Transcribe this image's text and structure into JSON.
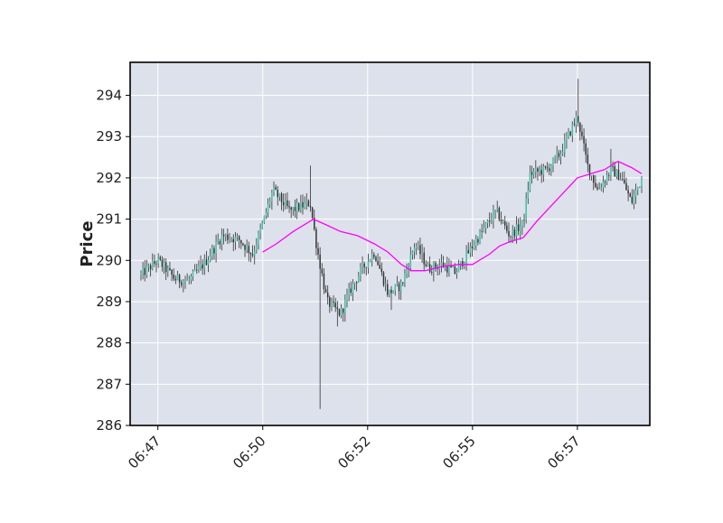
{
  "chart_data": {
    "type": "candlestick",
    "title": "",
    "xlabel": "",
    "ylabel": "Price",
    "ylim": [
      286,
      294.8
    ],
    "yticks": [
      286,
      287,
      288,
      289,
      290,
      291,
      292,
      293,
      294
    ],
    "ytick_labels": [
      "286",
      "287",
      "288",
      "289",
      "290",
      "291",
      "292",
      "293",
      "294"
    ],
    "xlim": [
      "06:46:44",
      "06:59:32"
    ],
    "xticks": [
      "06:47:25",
      "06:50:00",
      "06:52:35",
      "06:55:10",
      "06:57:45"
    ],
    "xtick_labels": [
      "06:47",
      "06:50",
      "06:52",
      "06:55",
      "06:57"
    ],
    "grid": true,
    "colors": {
      "background": "#dde1eb",
      "grid": "#ffffff",
      "frame": "#000000",
      "up": "#3ec0a8",
      "down": "#333333",
      "moving_average": "#ff00ff"
    },
    "price_path": {
      "time_range": [
        "06:47:00",
        "06:59:20"
      ],
      "control_points": [
        [
          "06:47:00",
          289.65
        ],
        [
          "06:47:25",
          290.0
        ],
        [
          "06:47:50",
          289.55
        ],
        [
          "06:48:10",
          289.5
        ],
        [
          "06:48:35",
          289.95
        ],
        [
          "06:49:00",
          290.6
        ],
        [
          "06:49:25",
          290.5
        ],
        [
          "06:49:45",
          290.15
        ],
        [
          "06:50:00",
          290.9
        ],
        [
          "06:50:15",
          291.7
        ],
        [
          "06:50:40",
          291.2
        ],
        [
          "06:51:10",
          291.4
        ],
        [
          "06:51:20",
          290.3
        ],
        [
          "06:51:35",
          289.0
        ],
        [
          "06:51:55",
          288.7
        ],
        [
          "06:52:10",
          289.3
        ],
        [
          "06:52:25",
          289.75
        ],
        [
          "06:52:45",
          290.2
        ],
        [
          "06:53:05",
          289.2
        ],
        [
          "06:53:25",
          289.4
        ],
        [
          "06:53:45",
          290.4
        ],
        [
          "06:54:05",
          289.8
        ],
        [
          "06:54:25",
          289.9
        ],
        [
          "06:54:45",
          289.7
        ],
        [
          "06:55:00",
          290.1
        ],
        [
          "06:55:20",
          290.6
        ],
        [
          "06:55:45",
          291.2
        ],
        [
          "06:56:05",
          290.6
        ],
        [
          "06:56:25",
          290.9
        ],
        [
          "06:56:35",
          292.1
        ],
        [
          "06:57:00",
          292.2
        ],
        [
          "06:57:20",
          292.6
        ],
        [
          "06:57:45",
          293.5
        ],
        [
          "06:58:00",
          292.3
        ],
        [
          "06:58:15",
          291.7
        ],
        [
          "06:58:35",
          292.2
        ],
        [
          "06:58:50",
          292.0
        ],
        [
          "06:59:05",
          291.4
        ],
        [
          "06:59:20",
          292.0
        ]
      ],
      "extreme_lows": [
        [
          "06:51:25",
          286.4
        ],
        [
          "06:51:50",
          288.4
        ],
        [
          "06:53:10",
          288.8
        ]
      ],
      "extreme_highs": [
        [
          "06:51:10",
          292.3
        ],
        [
          "06:57:45",
          294.4
        ],
        [
          "06:58:35",
          292.7
        ]
      ]
    },
    "series": [
      {
        "name": "",
        "style": "moving average line",
        "points": [
          [
            "06:50:00",
            290.2
          ],
          [
            "06:50:20",
            290.4
          ],
          [
            "06:50:45",
            290.7
          ],
          [
            "06:51:05",
            290.9
          ],
          [
            "06:51:15",
            291.0
          ],
          [
            "06:51:35",
            290.85
          ],
          [
            "06:51:55",
            290.7
          ],
          [
            "06:52:20",
            290.6
          ],
          [
            "06:52:45",
            290.4
          ],
          [
            "06:53:05",
            290.2
          ],
          [
            "06:53:25",
            289.9
          ],
          [
            "06:53:40",
            289.75
          ],
          [
            "06:54:00",
            289.75
          ],
          [
            "06:54:25",
            289.85
          ],
          [
            "06:54:50",
            289.9
          ],
          [
            "06:55:10",
            289.9
          ],
          [
            "06:55:35",
            290.15
          ],
          [
            "06:55:50",
            290.35
          ],
          [
            "06:56:05",
            290.45
          ],
          [
            "06:56:25",
            290.55
          ],
          [
            "06:56:45",
            290.95
          ],
          [
            "06:57:05",
            291.3
          ],
          [
            "06:57:25",
            291.65
          ],
          [
            "06:57:45",
            292.0
          ],
          [
            "06:58:05",
            292.1
          ],
          [
            "06:58:25",
            292.2
          ],
          [
            "06:58:45",
            292.4
          ],
          [
            "06:59:05",
            292.25
          ],
          [
            "06:59:20",
            292.1
          ]
        ]
      }
    ]
  }
}
